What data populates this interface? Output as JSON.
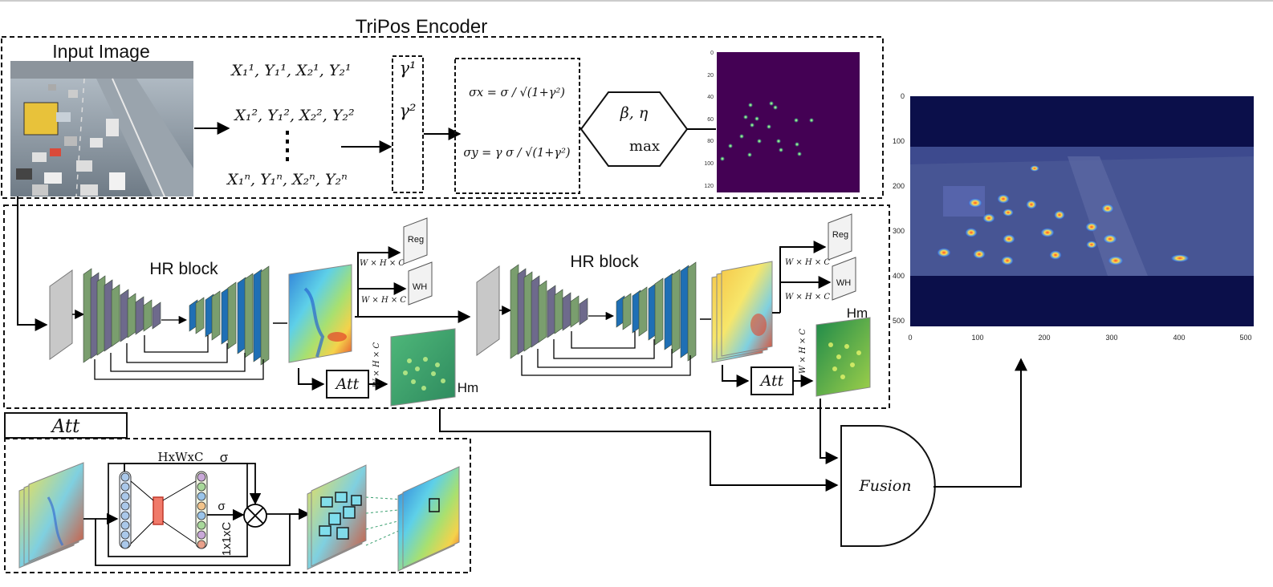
{
  "encoder": {
    "title": "TriPos Encoder",
    "input_label": "Input Image",
    "coord_rows": [
      "X₁¹, Y₁¹, X₂¹, Y₂¹",
      "X₁², Y₁², X₂², Y₂²",
      "X₁ⁿ, Y₁ⁿ, X₂ⁿ, Y₂ⁿ"
    ],
    "gamma_labels": [
      "γ¹",
      "γ²"
    ],
    "sigma_x": "σx = σ / √(1+γ²)",
    "sigma_y": "σy = γ σ / √(1+γ²)",
    "hex_top": "β, η",
    "hex_bottom": "max",
    "heat_yticks": [
      "0",
      "20",
      "40",
      "60",
      "80",
      "100",
      "120"
    ]
  },
  "stage1": {
    "title": "HR block",
    "reg": "Reg",
    "wh": "WH",
    "dim_reg": "W × H × C",
    "dim_wh": "W × H × C",
    "dim_hm": "W × H × C",
    "att": "Att",
    "hm": "Hm"
  },
  "stage2": {
    "title": "HR block",
    "reg": "Reg",
    "wh": "WH",
    "dim_reg": "W × H × C",
    "dim_wh": "W × H × C",
    "dim_hm": "W × H × C",
    "att": "Att",
    "hm": "Hm"
  },
  "att_detail": {
    "title": "Att",
    "hxwxc": "HxWxC",
    "sigma1": "σ",
    "sigma2": "σ",
    "one_by_one": "1x1xC"
  },
  "fusion": {
    "label": "Fusion"
  },
  "output": {
    "yticks": [
      "0",
      "100",
      "200",
      "300",
      "400",
      "500"
    ],
    "xticks": [
      "0",
      "100",
      "200",
      "300",
      "400",
      "500"
    ]
  },
  "colors": {
    "layer_green": "#7a9e6e",
    "layer_purple": "#6e6a8c",
    "layer_blue": "#1f6fb5",
    "heat_bg": "#440154",
    "out_bg": "#0b0f4a"
  }
}
